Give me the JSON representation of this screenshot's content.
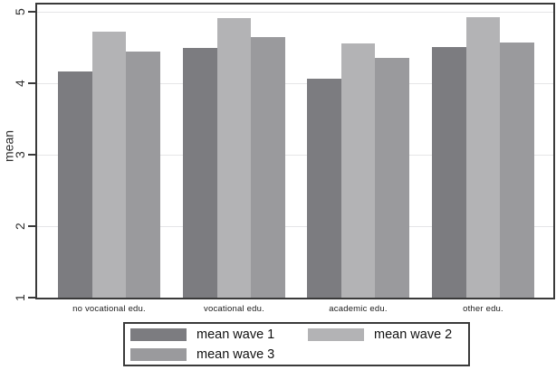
{
  "chart_data": {
    "type": "bar",
    "title": "",
    "xlabel": "",
    "ylabel": "mean",
    "ylim": [
      1,
      5
    ],
    "yticks": [
      1,
      2,
      3,
      4,
      5
    ],
    "grid": true,
    "legend_position": "bottom",
    "categories": [
      "no vocational edu.",
      "vocational edu.",
      "academic edu.",
      "other edu."
    ],
    "series": [
      {
        "name": "mean wave 1",
        "color": "#7c7c80",
        "values": [
          4.16,
          4.5,
          4.07,
          4.51
        ]
      },
      {
        "name": "mean wave 2",
        "color": "#b3b3b5",
        "values": [
          4.72,
          4.91,
          4.56,
          4.93
        ]
      },
      {
        "name": "mean wave 3",
        "color": "#9a9a9d",
        "values": [
          4.44,
          4.65,
          4.35,
          4.57
        ]
      }
    ]
  },
  "colors": {
    "axis": "#3a3a3a",
    "gridline": "#e5e5e7",
    "background": "#ffffff",
    "text": "#1c1c1c"
  }
}
